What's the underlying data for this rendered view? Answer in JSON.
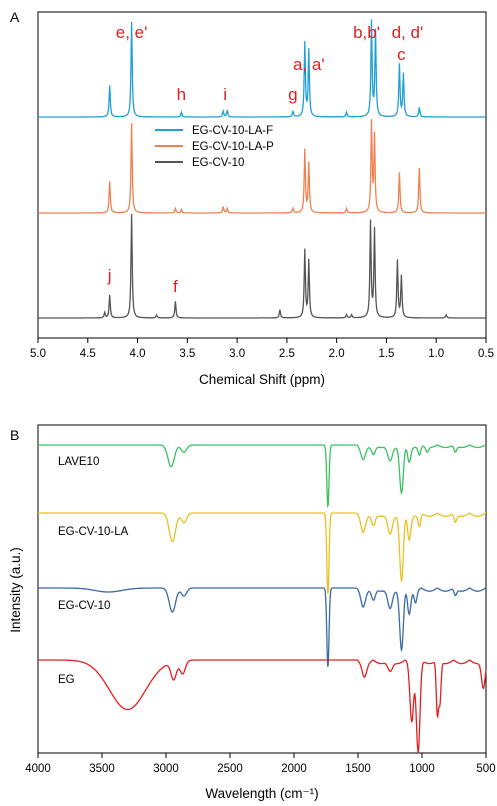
{
  "chart_data": [
    {
      "type": "line",
      "panel": "A",
      "xlabel": "Chemical Shift (ppm)",
      "xlim": [
        5.0,
        0.5
      ],
      "x_ticks": [
        "5.0",
        "4.5",
        "4.0",
        "3.5",
        "3.0",
        "2.5",
        "2.0",
        "1.5",
        "1.0",
        "0.5"
      ],
      "legend": {
        "position": "middle-left"
      },
      "series": [
        {
          "name": "EG-CV-10-LA-F",
          "color": "#1f9fd8",
          "peaks": [
            {
              "x": 4.28,
              "h": 0.33
            },
            {
              "x": 4.06,
              "h": 1.0
            },
            {
              "x": 3.56,
              "h": 0.05
            },
            {
              "x": 3.14,
              "h": 0.06
            },
            {
              "x": 3.1,
              "h": 0.07
            },
            {
              "x": 2.44,
              "h": 0.06
            },
            {
              "x": 2.32,
              "h": 0.78
            },
            {
              "x": 2.28,
              "h": 0.7
            },
            {
              "x": 1.9,
              "h": 0.05
            },
            {
              "x": 1.65,
              "h": 1.0
            },
            {
              "x": 1.61,
              "h": 0.9
            },
            {
              "x": 1.37,
              "h": 0.55
            },
            {
              "x": 1.33,
              "h": 0.45
            },
            {
              "x": 1.17,
              "h": 0.1
            }
          ]
        },
        {
          "name": "EG-CV-10-LA-P",
          "color": "#f08050",
          "peaks": [
            {
              "x": 4.28,
              "h": 0.35
            },
            {
              "x": 4.06,
              "h": 1.0
            },
            {
              "x": 3.62,
              "h": 0.05
            },
            {
              "x": 3.56,
              "h": 0.04
            },
            {
              "x": 3.14,
              "h": 0.07
            },
            {
              "x": 3.1,
              "h": 0.05
            },
            {
              "x": 2.44,
              "h": 0.05
            },
            {
              "x": 2.32,
              "h": 0.7
            },
            {
              "x": 2.28,
              "h": 0.55
            },
            {
              "x": 1.9,
              "h": 0.05
            },
            {
              "x": 1.65,
              "h": 1.0
            },
            {
              "x": 1.62,
              "h": 0.85
            },
            {
              "x": 1.37,
              "h": 0.45
            },
            {
              "x": 1.17,
              "h": 0.5
            }
          ]
        },
        {
          "name": "EG-CV-10",
          "color": "#555555",
          "peaks": [
            {
              "x": 4.33,
              "h": 0.05
            },
            {
              "x": 4.28,
              "h": 0.22
            },
            {
              "x": 4.06,
              "h": 1.0
            },
            {
              "x": 3.81,
              "h": 0.03
            },
            {
              "x": 3.62,
              "h": 0.16
            },
            {
              "x": 2.57,
              "h": 0.08
            },
            {
              "x": 2.32,
              "h": 0.65
            },
            {
              "x": 2.28,
              "h": 0.55
            },
            {
              "x": 1.9,
              "h": 0.03
            },
            {
              "x": 1.85,
              "h": 0.03
            },
            {
              "x": 1.66,
              "h": 0.92
            },
            {
              "x": 1.62,
              "h": 0.85
            },
            {
              "x": 1.39,
              "h": 0.55
            },
            {
              "x": 1.35,
              "h": 0.4
            },
            {
              "x": 0.9,
              "h": 0.03
            }
          ]
        }
      ],
      "annotations": [
        {
          "text": "e, e'",
          "x": 4.06
        },
        {
          "text": "h",
          "x": 3.56
        },
        {
          "text": "i",
          "x": 3.12
        },
        {
          "text": "g",
          "x": 2.44
        },
        {
          "text": "a, a'",
          "x": 2.3
        },
        {
          "text": "b,b'",
          "x": 1.65
        },
        {
          "text": "d, d'",
          "x": 1.47
        },
        {
          "text": "c",
          "x": 1.35
        },
        {
          "text": "j",
          "x": 4.28
        },
        {
          "text": "f",
          "x": 3.62
        }
      ]
    },
    {
      "type": "line",
      "panel": "B",
      "xlabel": "Wavelength (cm⁻¹)",
      "ylabel": "Intensity (a.u.)",
      "xlim": [
        4000,
        500
      ],
      "x_ticks": [
        "4000",
        "3500",
        "3000",
        "2500",
        "2000",
        "1500",
        "1000",
        "500"
      ],
      "series": [
        {
          "name": "LAVE10",
          "color": "#3cc060",
          "bands": [
            {
              "x": 2960,
              "d": 0.35,
              "w": 35
            },
            {
              "x": 2860,
              "d": 0.12,
              "w": 30
            },
            {
              "x": 1735,
              "d": 1.0,
              "w": 12
            },
            {
              "x": 1460,
              "d": 0.2,
              "w": 25
            },
            {
              "x": 1380,
              "d": 0.15,
              "w": 20
            },
            {
              "x": 1250,
              "d": 0.25,
              "w": 25
            },
            {
              "x": 1160,
              "d": 0.75,
              "w": 20
            },
            {
              "x": 1100,
              "d": 0.25,
              "w": 18
            },
            {
              "x": 1020,
              "d": 0.15,
              "w": 15
            },
            {
              "x": 960,
              "d": 0.08,
              "w": 15
            },
            {
              "x": 740,
              "d": 0.1,
              "w": 15
            }
          ]
        },
        {
          "name": "EG-CV-10-LA",
          "color": "#e8c020",
          "bands": [
            {
              "x": 2950,
              "d": 0.35,
              "w": 35
            },
            {
              "x": 2860,
              "d": 0.12,
              "w": 30
            },
            {
              "x": 1735,
              "d": 1.0,
              "w": 12
            },
            {
              "x": 1460,
              "d": 0.2,
              "w": 25
            },
            {
              "x": 1380,
              "d": 0.15,
              "w": 20
            },
            {
              "x": 1250,
              "d": 0.25,
              "w": 25
            },
            {
              "x": 1160,
              "d": 0.8,
              "w": 20
            },
            {
              "x": 1100,
              "d": 0.3,
              "w": 18
            },
            {
              "x": 1020,
              "d": 0.15,
              "w": 15
            },
            {
              "x": 740,
              "d": 0.1,
              "w": 15
            }
          ]
        },
        {
          "name": "EG-CV-10",
          "color": "#3a6aa8",
          "bands": [
            {
              "x": 3450,
              "d": 0.05,
              "w": 150
            },
            {
              "x": 2950,
              "d": 0.3,
              "w": 35
            },
            {
              "x": 2860,
              "d": 0.1,
              "w": 30
            },
            {
              "x": 1735,
              "d": 1.0,
              "w": 12
            },
            {
              "x": 1460,
              "d": 0.2,
              "w": 25
            },
            {
              "x": 1380,
              "d": 0.15,
              "w": 20
            },
            {
              "x": 1250,
              "d": 0.25,
              "w": 25
            },
            {
              "x": 1160,
              "d": 0.75,
              "w": 20
            },
            {
              "x": 1100,
              "d": 0.3,
              "w": 18
            },
            {
              "x": 1050,
              "d": 0.15,
              "w": 15
            },
            {
              "x": 740,
              "d": 0.08,
              "w": 15
            }
          ]
        },
        {
          "name": "EG",
          "color": "#e02020",
          "bands": [
            {
              "x": 3300,
              "d": 0.55,
              "w": 200
            },
            {
              "x": 2940,
              "d": 0.2,
              "w": 30
            },
            {
              "x": 2870,
              "d": 0.15,
              "w": 30
            },
            {
              "x": 1450,
              "d": 0.15,
              "w": 25
            },
            {
              "x": 1250,
              "d": 0.12,
              "w": 25
            },
            {
              "x": 1080,
              "d": 0.65,
              "w": 20
            },
            {
              "x": 1030,
              "d": 1.0,
              "w": 20
            },
            {
              "x": 880,
              "d": 0.6,
              "w": 12
            },
            {
              "x": 860,
              "d": 0.45,
              "w": 12
            },
            {
              "x": 520,
              "d": 0.3,
              "w": 20
            }
          ]
        }
      ]
    }
  ],
  "labels": {
    "panel_a": "A",
    "panel_b": "B"
  }
}
